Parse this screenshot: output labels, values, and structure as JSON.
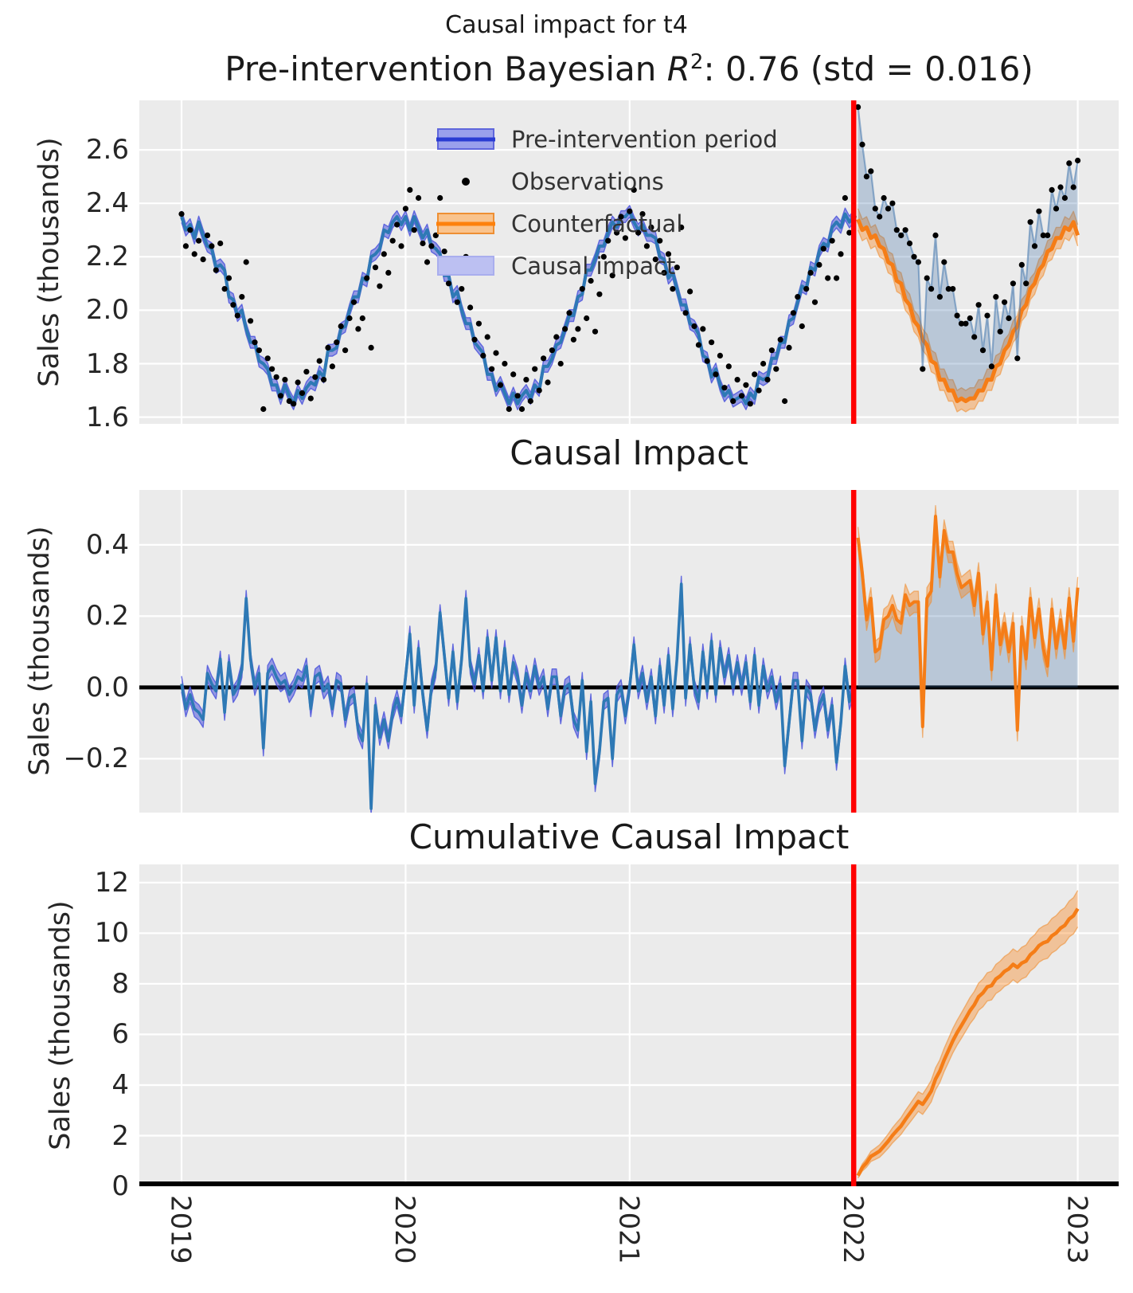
{
  "figure": {
    "suptitle": "Causal impact for t4",
    "title_r2": {
      "prefix": "Pre-intervention Bayesian ",
      "r": "R",
      "sup": "2",
      "suffix": ": 0.76 (std = 0.016)"
    },
    "panel2_title": "Causal Impact",
    "panel3_title": "Cumulative Causal Impact",
    "ylabel": "Sales (thousands)"
  },
  "legend": {
    "items": [
      {
        "label": "Pre-intervention period",
        "swatch": "blue-band"
      },
      {
        "label": "Observations",
        "swatch": "black-dot"
      },
      {
        "label": "Counterfactual",
        "swatch": "orange-band"
      },
      {
        "label": "Causal impact",
        "swatch": "light-blue-patch"
      }
    ]
  },
  "chart_data": {
    "type": "line",
    "x_axis": {
      "start_year": 2019,
      "end_year": 2023,
      "points_per_year": 52,
      "tick_labels": [
        "2019",
        "2020",
        "2021",
        "2022",
        "2023"
      ],
      "tick_values": [
        2019,
        2020,
        2021,
        2022,
        2023
      ]
    },
    "intervention_year": 2022,
    "intervention_line_color": "#ff0000",
    "panels": [
      {
        "name": "observations-fit",
        "ylim": [
          1.575,
          2.785
        ],
        "ytick_values": [
          1.6,
          1.8,
          2.0,
          2.2,
          2.4,
          2.6
        ],
        "ytick_labels": [
          "1.6",
          "1.8",
          "2.0",
          "2.2",
          "2.4",
          "2.6"
        ],
        "grid": true
      },
      {
        "name": "causal-impact",
        "ylim": [
          -0.351,
          0.554
        ],
        "ytick_values": [
          -0.2,
          0.0,
          0.2,
          0.4
        ],
        "ytick_labels": [
          "−0.2",
          "0.0",
          "0.2",
          "0.4"
        ],
        "grid": true,
        "zero_line": true
      },
      {
        "name": "cumulative-causal-impact",
        "ylim": [
          0,
          12.72
        ],
        "ytick_values": [
          0,
          2,
          4,
          6,
          8,
          10,
          12
        ],
        "ytick_labels": [
          "0",
          "2",
          "4",
          "6",
          "8",
          "10",
          "12"
        ],
        "grid": true,
        "zero_line": true
      }
    ],
    "observations": [
      2.36,
      2.24,
      2.3,
      2.21,
      2.26,
      2.19,
      2.28,
      2.24,
      2.15,
      2.25,
      2.08,
      2.12,
      2.02,
      1.98,
      2.05,
      2.18,
      1.96,
      1.88,
      1.85,
      1.63,
      1.82,
      1.78,
      1.75,
      1.68,
      1.74,
      1.66,
      1.65,
      1.73,
      1.69,
      1.77,
      1.67,
      1.75,
      1.81,
      1.74,
      1.86,
      1.79,
      1.88,
      1.94,
      1.85,
      1.97,
      2.03,
      1.93,
      1.97,
      2.12,
      1.86,
      2.16,
      2.09,
      2.21,
      2.14,
      2.26,
      2.32,
      2.24,
      2.38,
      2.45,
      2.3,
      2.42,
      2.25,
      2.18,
      2.24,
      2.28,
      2.42,
      2.22,
      2.1,
      2.15,
      2.03,
      2.08,
      2.2,
      2.01,
      1.89,
      1.95,
      1.83,
      1.9,
      1.78,
      1.84,
      1.72,
      1.8,
      1.63,
      1.76,
      1.68,
      1.63,
      1.74,
      1.66,
      1.78,
      1.7,
      1.82,
      1.73,
      1.85,
      1.9,
      1.8,
      1.93,
      1.99,
      1.89,
      1.93,
      2.08,
      1.97,
      2.11,
      1.92,
      2.06,
      2.2,
      2.26,
      2.13,
      2.29,
      2.35,
      2.27,
      2.37,
      2.45,
      2.29,
      2.36,
      2.24,
      2.31,
      2.19,
      2.26,
      2.14,
      2.21,
      2.08,
      2.16,
      2.31,
      1.99,
      2.07,
      1.94,
      1.87,
      1.93,
      1.81,
      1.88,
      1.76,
      1.83,
      1.71,
      1.79,
      1.66,
      1.74,
      1.68,
      1.72,
      1.65,
      1.76,
      1.7,
      1.8,
      1.74,
      1.85,
      1.78,
      1.89,
      1.66,
      1.86,
      1.99,
      2.05,
      1.94,
      2.08,
      2.14,
      2.03,
      2.17,
      2.23,
      2.12,
      2.26,
      2.12,
      2.21,
      2.42,
      2.29,
      2.35,
      2.76,
      2.62,
      2.5,
      2.52,
      2.38,
      2.35,
      2.42,
      2.38,
      2.4,
      2.3,
      2.28,
      2.3,
      2.25,
      2.2,
      2.18,
      1.78,
      2.12,
      2.08,
      2.28,
      2.05,
      2.18,
      2.08,
      2.08,
      1.98,
      1.95,
      1.95,
      1.97,
      1.9,
      2.02,
      1.85,
      1.98,
      1.79,
      2.05,
      1.92,
      2.03,
      1.97,
      2.1,
      1.82,
      2.17,
      2.1,
      2.33,
      2.24,
      2.37,
      2.28,
      2.28,
      2.45,
      2.38,
      2.46,
      2.42,
      2.55,
      2.46,
      2.56
    ],
    "pre_intervention_fit": {
      "n_points": 157,
      "band_halfwidth": 0.022,
      "mean": [
        2.35,
        2.3,
        2.32,
        2.27,
        2.33,
        2.28,
        2.24,
        2.23,
        2.16,
        2.17,
        2.15,
        2.05,
        2.04,
        1.98,
        2.0,
        1.93,
        1.88,
        1.88,
        1.81,
        1.8,
        1.78,
        1.72,
        1.72,
        1.67,
        1.72,
        1.68,
        1.65,
        1.7,
        1.67,
        1.71,
        1.73,
        1.72,
        1.77,
        1.75,
        1.85,
        1.85,
        1.86,
        1.93,
        1.94,
        2.0,
        2.05,
        2.05,
        2.12,
        2.11,
        2.2,
        2.21,
        2.23,
        2.3,
        2.29,
        2.33,
        2.35,
        2.32,
        2.35,
        2.3,
        2.35,
        2.31,
        2.27,
        2.3,
        2.24,
        2.23,
        2.21,
        2.13,
        2.13,
        2.05,
        2.07,
        2.0,
        1.95,
        1.95,
        1.88,
        1.86,
        1.84,
        1.76,
        1.76,
        1.7,
        1.73,
        1.69,
        1.65,
        1.69,
        1.65,
        1.68,
        1.7,
        1.67,
        1.72,
        1.7,
        1.79,
        1.79,
        1.82,
        1.87,
        1.88,
        1.93,
        1.98,
        1.98,
        2.05,
        2.06,
        2.15,
        2.15,
        2.19,
        2.24,
        2.24,
        2.29,
        2.33,
        2.31,
        2.35,
        2.35,
        2.37,
        2.33,
        2.3,
        2.32,
        2.28,
        2.28,
        2.27,
        2.2,
        2.19,
        2.12,
        2.14,
        2.08,
        2.02,
        2.02,
        1.95,
        1.94,
        1.91,
        1.83,
        1.82,
        1.75,
        1.78,
        1.72,
        1.68,
        1.7,
        1.66,
        1.67,
        1.68,
        1.65,
        1.69,
        1.67,
        1.75,
        1.74,
        1.75,
        1.82,
        1.82,
        1.88,
        1.88,
        1.96,
        1.97,
        2.03,
        2.09,
        2.08,
        2.16,
        2.15,
        2.22,
        2.25,
        2.24,
        2.31,
        2.33,
        2.31,
        2.36,
        2.33,
        2.35
      ]
    },
    "counterfactual": {
      "n_points": 52,
      "band_halfwidth": 0.04,
      "mean": [
        2.34,
        2.3,
        2.31,
        2.27,
        2.28,
        2.24,
        2.23,
        2.18,
        2.17,
        2.11,
        2.1,
        2.04,
        2.02,
        1.96,
        1.94,
        1.89,
        1.87,
        1.81,
        1.8,
        1.74,
        1.74,
        1.7,
        1.7,
        1.66,
        1.67,
        1.66,
        1.67,
        1.67,
        1.7,
        1.7,
        1.74,
        1.74,
        1.79,
        1.8,
        1.85,
        1.87,
        1.92,
        1.94,
        2.0,
        2.02,
        2.08,
        2.1,
        2.15,
        2.17,
        2.22,
        2.23,
        2.27,
        2.27,
        2.31,
        2.3,
        2.33,
        2.28
      ]
    },
    "impact_band_halfwidth": 0.03,
    "cumulative_band_halfwidth_per_sqrt_week": 0.1,
    "cumulative_end_value": 10.98,
    "colors": {
      "panel_background": "#ebebeb",
      "gridline": "#ffffff",
      "pre_line": "#2e79b5",
      "pre_band_fill": "rgba(78,86,220,0.55)",
      "pre_band_edge": "rgba(78,86,220,0.85)",
      "counterfactual_line": "#f57d17",
      "counterfactual_band_fill": "rgba(249,128,22,0.38)",
      "counterfactual_band_edge": "rgba(238,143,51,0.6)",
      "observations_dot": "#000000",
      "observations_post_line": "rgba(70,120,175,0.55)",
      "causal_impact_fill": "rgba(58,107,166,0.28)",
      "zero_line": "#000000",
      "intervention_line": "#ff0000"
    }
  }
}
